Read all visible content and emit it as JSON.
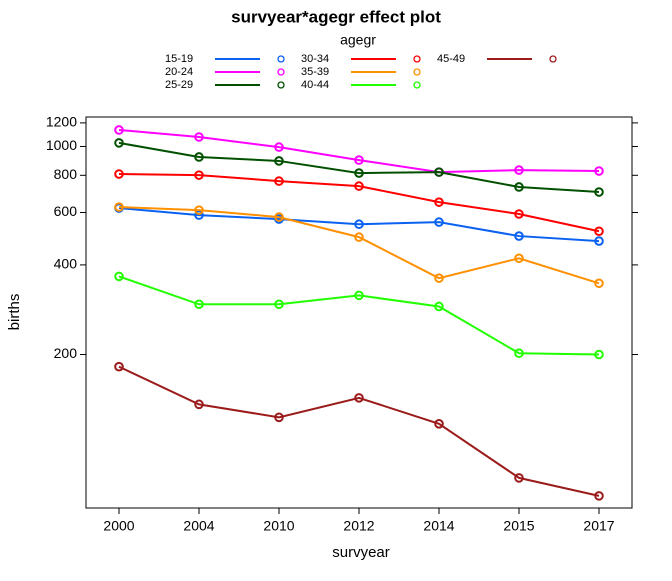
{
  "chart_data": {
    "type": "line",
    "title": "survyear*agegr effect plot",
    "x_label": "survyear",
    "y_label": "births",
    "legend_title": "agegr",
    "categories": [
      "2000",
      "2004",
      "2010",
      "2012",
      "2014",
      "2015",
      "2017"
    ],
    "y_log": true,
    "ylim": [
      61,
      1256
    ],
    "yticks": [
      200,
      400,
      600,
      800,
      1000,
      1200
    ],
    "series": [
      {
        "name": "15-19",
        "color": "#0b62f0",
        "values": [
          621,
          588,
          570,
          548,
          557,
          500,
          481
        ]
      },
      {
        "name": "20-24",
        "color": "#ff00ff",
        "values": [
          1136,
          1076,
          995,
          900,
          820,
          833,
          827
        ]
      },
      {
        "name": "25-29",
        "color": "#005000",
        "values": [
          1028,
          922,
          894,
          814,
          820,
          731,
          703
        ]
      },
      {
        "name": "30-34",
        "color": "#ff0000",
        "values": [
          808,
          801,
          765,
          736,
          650,
          593,
          519
        ]
      },
      {
        "name": "35-39",
        "color": "#ff9000",
        "values": [
          626,
          611,
          579,
          496,
          361,
          421,
          347
        ]
      },
      {
        "name": "40-44",
        "color": "#22ff00",
        "values": [
          366,
          295,
          295,
          316,
          290,
          202,
          200
        ]
      },
      {
        "name": "45-49",
        "color": "#9b1b1b",
        "values": [
          182,
          136,
          123,
          143,
          117,
          77,
          67
        ]
      }
    ]
  }
}
